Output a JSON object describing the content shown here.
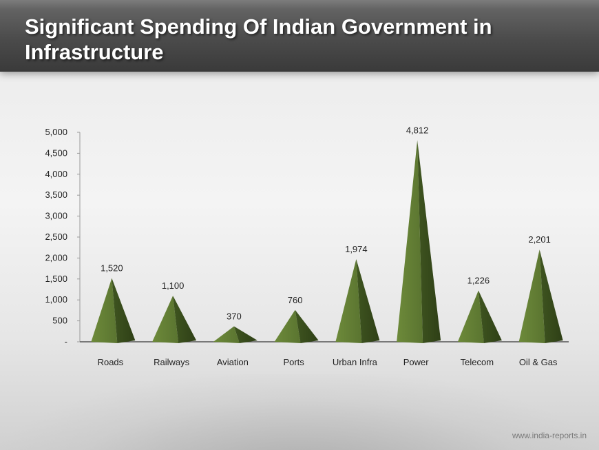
{
  "header": {
    "title": "Significant Spending Of Indian Government in Infrastructure"
  },
  "footer": {
    "url": "www.india-reports.in"
  },
  "colors": {
    "pyramid_light": "#6d8a3a",
    "pyramid_dark": "#3f5520",
    "title_bar": "#4b4b4b"
  },
  "chart_data": {
    "type": "bar",
    "bar_shape": "pyramid",
    "title": "",
    "xlabel": "",
    "ylabel": "",
    "categories": [
      "Roads",
      "Railways",
      "Aviation",
      "Ports",
      "Urban Infra",
      "Power",
      "Telecom",
      "Oil & Gas"
    ],
    "values": [
      1520,
      1100,
      370,
      760,
      1974,
      4812,
      1226,
      2201
    ],
    "value_labels": [
      "1,520",
      "1,100",
      "370",
      "760",
      "1,974",
      "4,812",
      "1,226",
      "2,201"
    ],
    "ylim": [
      0,
      5000
    ],
    "y_ticks": [
      0,
      500,
      1000,
      1500,
      2000,
      2500,
      3000,
      3500,
      4000,
      4500,
      5000
    ],
    "y_tick_labels": [
      "-",
      "500",
      "1,000",
      "1,500",
      "2,000",
      "2,500",
      "3,000",
      "3,500",
      "4,000",
      "4,500",
      "5,000"
    ],
    "grid": false,
    "legend": "none"
  }
}
